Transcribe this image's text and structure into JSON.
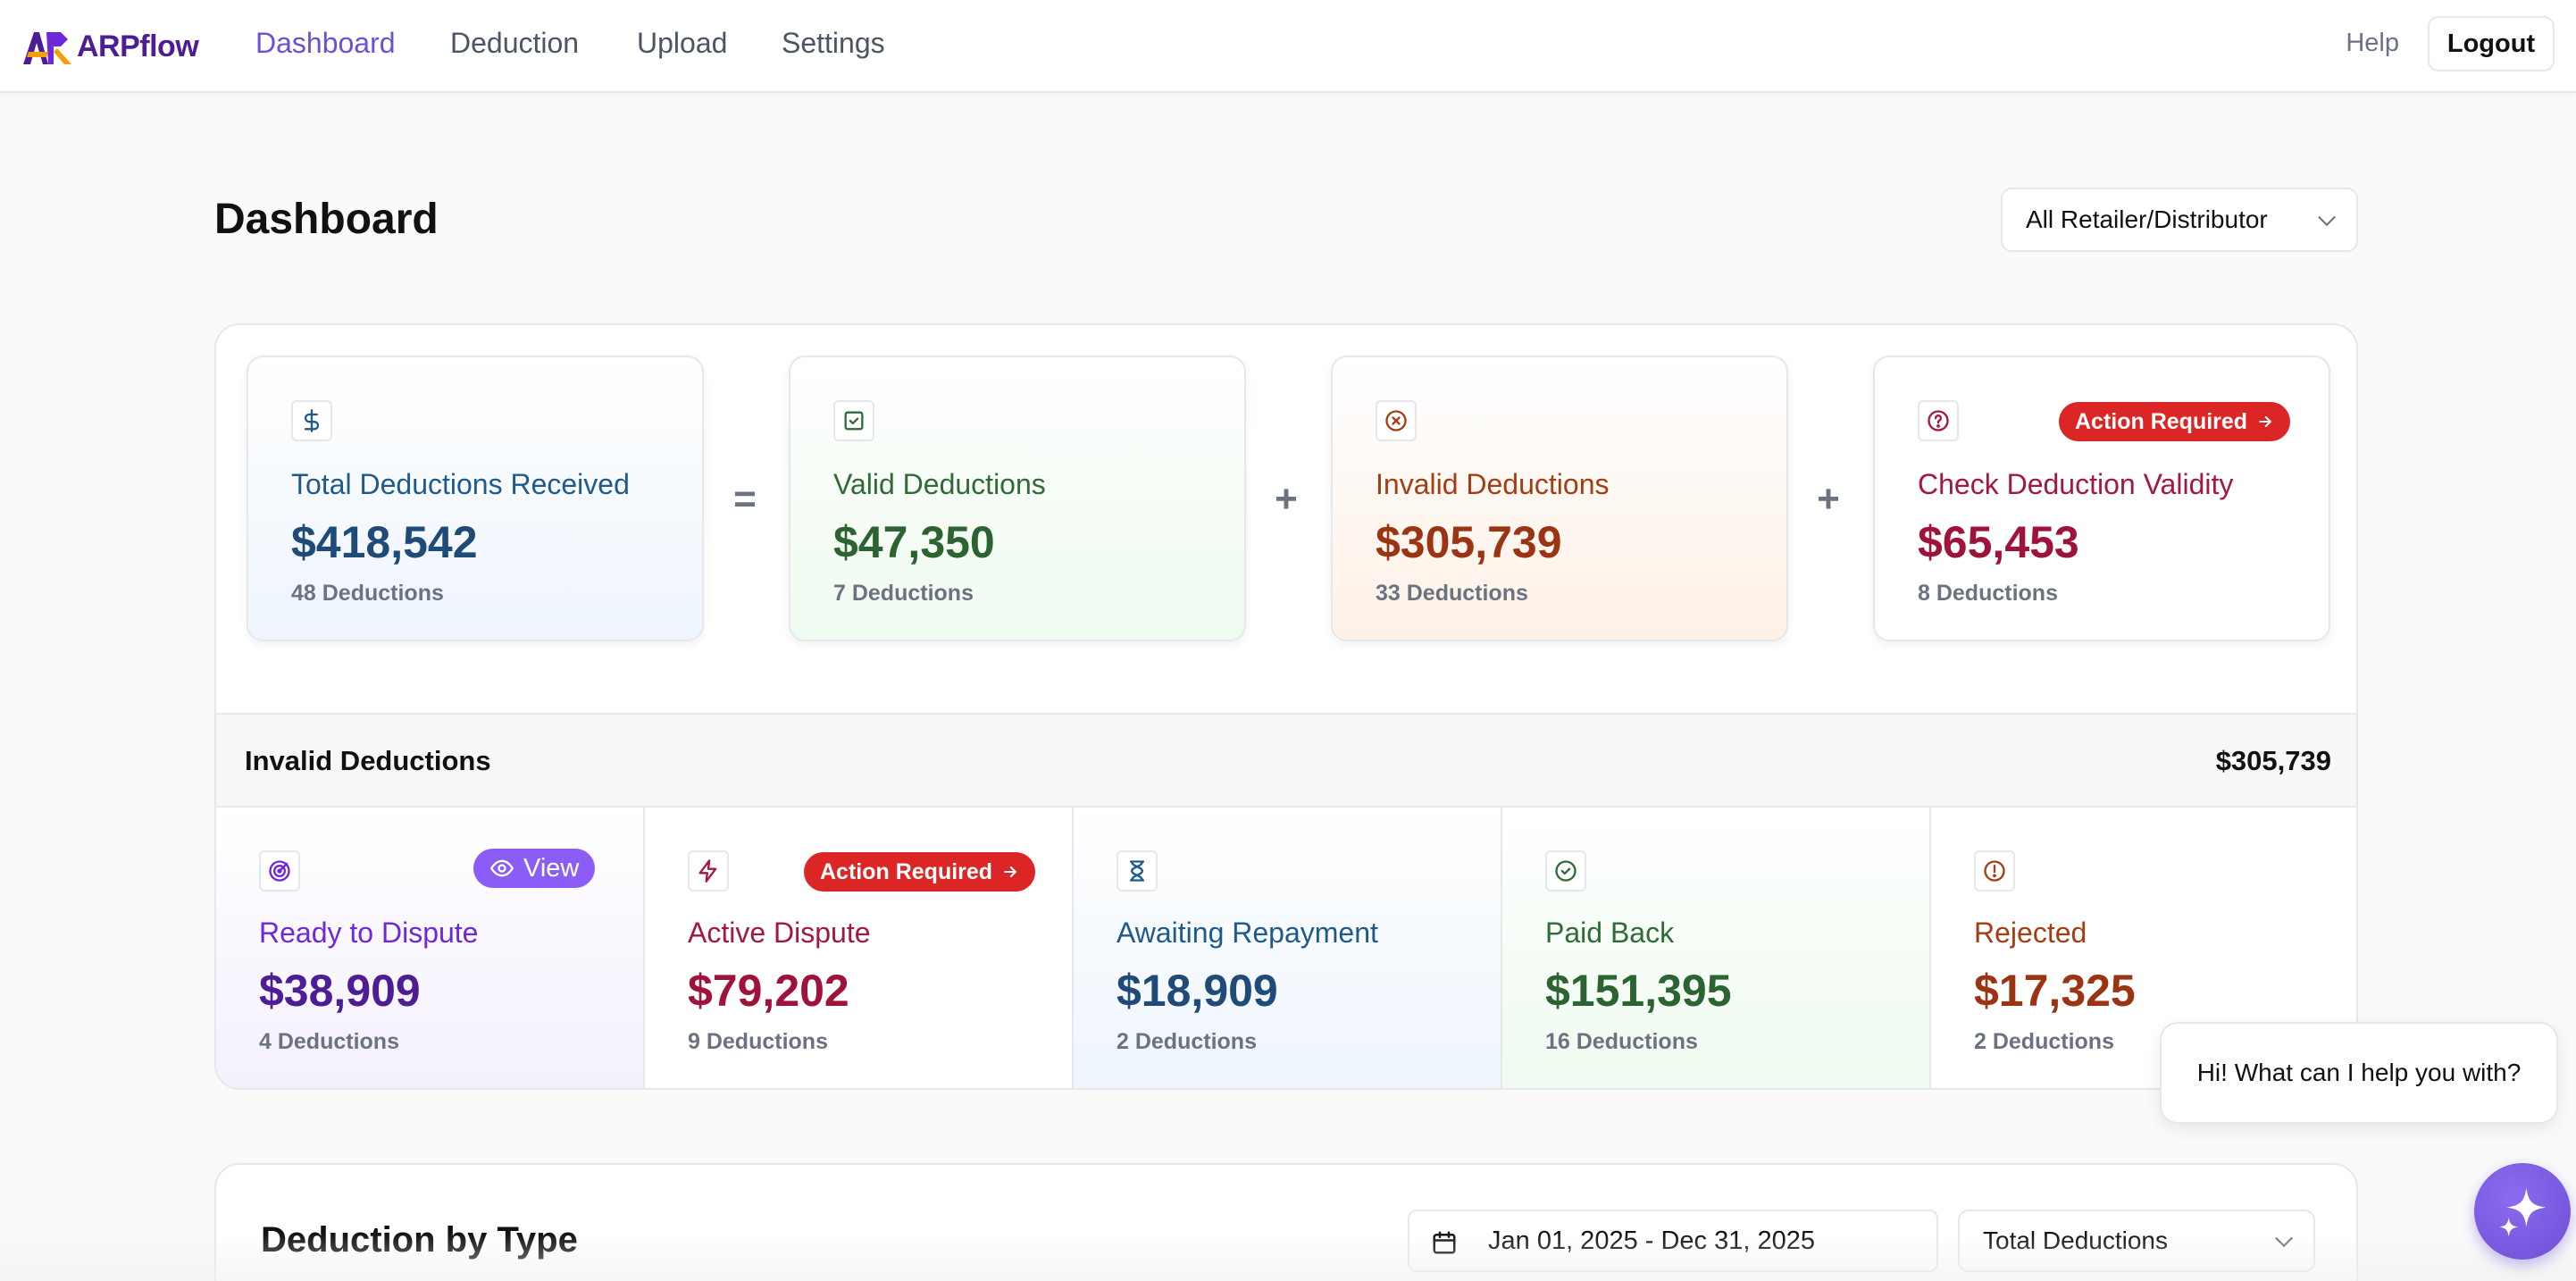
{
  "app": {
    "name": "ARPflow"
  },
  "nav": {
    "items": [
      {
        "label": "Dashboard",
        "active": true
      },
      {
        "label": "Deduction",
        "active": false
      },
      {
        "label": "Upload",
        "active": false
      },
      {
        "label": "Settings",
        "active": false
      }
    ],
    "help": "Help",
    "logout": "Logout"
  },
  "page": {
    "title": "Dashboard",
    "filter": "All Retailer/Distributor"
  },
  "kpis": [
    {
      "label": "Total Deductions Received",
      "amount": "$418,542",
      "count": "48 Deductions",
      "icon": "dollar-icon",
      "color": "#1e5a8c"
    },
    {
      "label": "Valid Deductions",
      "amount": "$47,350",
      "count": "7 Deductions",
      "icon": "check-square-icon",
      "color": "#2f6b34"
    },
    {
      "label": "Invalid Deductions",
      "amount": "$305,739",
      "count": "33 Deductions",
      "icon": "x-circle-icon",
      "color": "#a53d12"
    },
    {
      "label": "Check Deduction Validity",
      "amount": "$65,453",
      "count": "8 Deductions",
      "icon": "question-circle-icon",
      "color": "#a3183f",
      "badge": "Action Required"
    }
  ],
  "operators": [
    "=",
    "+",
    "+"
  ],
  "invalid": {
    "title": "Invalid Deductions",
    "total": "$305,739",
    "items": [
      {
        "label": "Ready to Dispute",
        "amount": "$38,909",
        "count": "4 Deductions",
        "icon": "target-icon",
        "color": "#5b21b6",
        "badge": "View"
      },
      {
        "label": "Active Dispute",
        "amount": "$79,202",
        "count": "9 Deductions",
        "icon": "lightning-icon",
        "color": "#a3183f",
        "badge": "Action Required"
      },
      {
        "label": "Awaiting Repayment",
        "amount": "$18,909",
        "count": "2 Deductions",
        "icon": "hourglass-icon",
        "color": "#1e5a8c"
      },
      {
        "label": "Paid Back",
        "amount": "$151,395",
        "count": "16 Deductions",
        "icon": "check-circle-icon",
        "color": "#2f6b34"
      },
      {
        "label": "Rejected",
        "amount": "$17,325",
        "count": "2 Deductions",
        "icon": "alert-circle-icon",
        "color": "#a53d12"
      }
    ]
  },
  "deduction_by_type": {
    "title": "Deduction by Type",
    "date_range": "Jan 01, 2025 - Dec 31, 2025",
    "metric": "Total Deductions"
  },
  "chat": {
    "greeting": "Hi! What can I help you with?"
  }
}
